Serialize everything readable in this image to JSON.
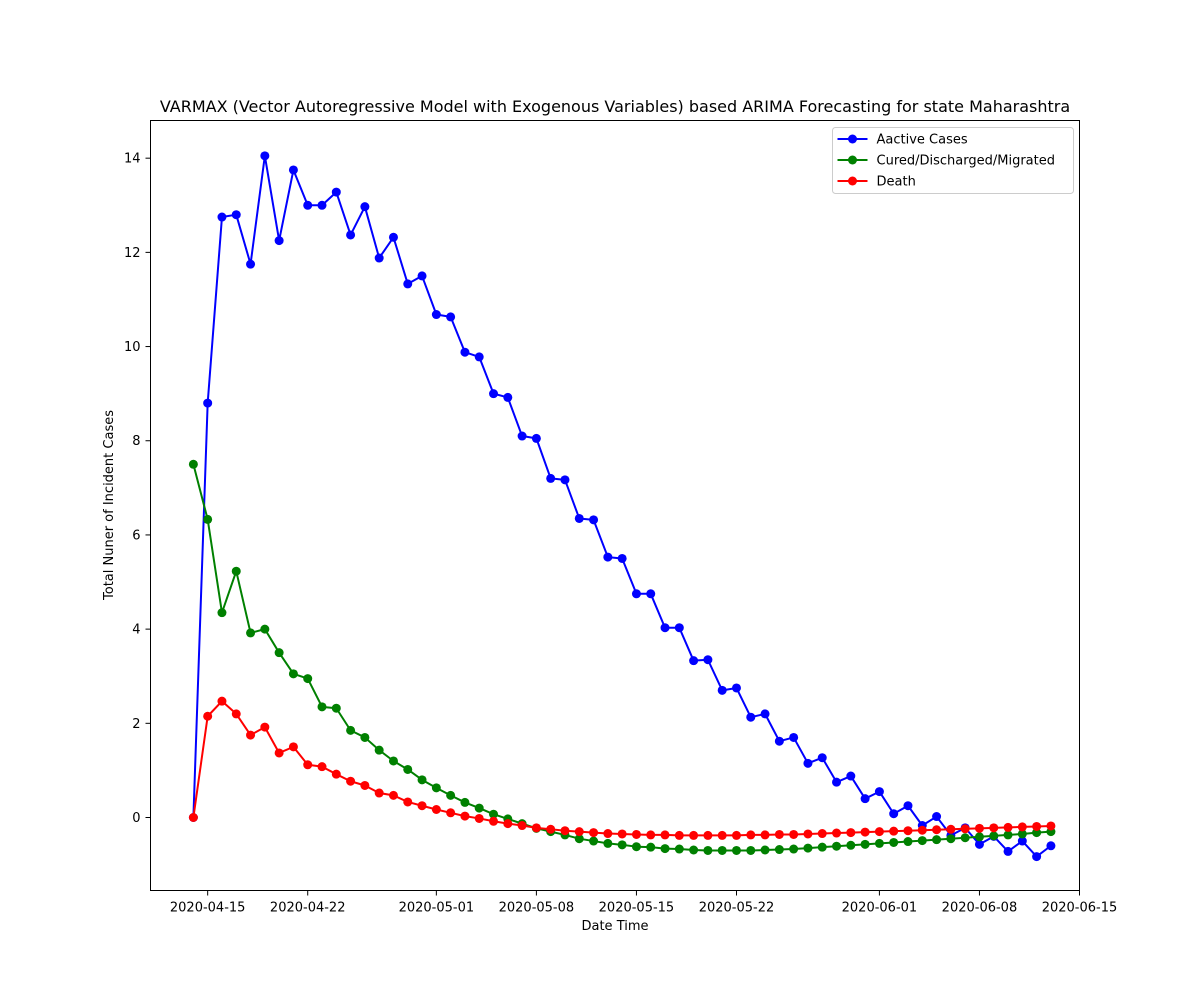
{
  "chart_data": {
    "type": "line",
    "title": "VARMAX (Vector Autoregressive Model with Exogenous Variables) based ARIMA Forecasting for state Maharashtra",
    "xlabel": "Date Time",
    "ylabel": "Total Nuner of Incident Cases",
    "x_start": "2020-04-14",
    "xlim": [
      "2020-04-11",
      "2020-06-15"
    ],
    "ylim": [
      -1.55,
      14.8
    ],
    "x_ticks": [
      "2020-04-15",
      "2020-04-22",
      "2020-05-01",
      "2020-05-08",
      "2020-05-15",
      "2020-05-22",
      "2020-06-01",
      "2020-06-08",
      "2020-06-15"
    ],
    "y_ticks": [
      0,
      2,
      4,
      6,
      8,
      10,
      12,
      14
    ],
    "legend_position": "top-right",
    "grid": false,
    "series": [
      {
        "name": "Aactive Cases",
        "color": "#0000ff",
        "values": [
          0,
          8.8,
          12.75,
          12.8,
          11.75,
          14.05,
          12.25,
          13.75,
          13.0,
          13.0,
          13.28,
          12.37,
          12.97,
          11.88,
          12.32,
          11.33,
          11.5,
          10.68,
          10.63,
          9.88,
          9.78,
          9.0,
          8.92,
          8.1,
          8.05,
          7.2,
          7.17,
          6.35,
          6.32,
          5.53,
          5.5,
          4.75,
          4.75,
          4.03,
          4.03,
          3.33,
          3.35,
          2.7,
          2.75,
          2.13,
          2.2,
          1.62,
          1.7,
          1.15,
          1.27,
          0.75,
          0.88,
          0.4,
          0.55,
          0.08,
          0.25,
          -0.17,
          0.02,
          -0.38,
          -0.22,
          -0.57,
          -0.4,
          -0.72,
          -0.5,
          -0.83,
          -0.6
        ]
      },
      {
        "name": "Cured/Discharged/Migrated",
        "color": "#008000",
        "values": [
          7.5,
          6.33,
          4.35,
          5.23,
          3.92,
          4.0,
          3.5,
          3.05,
          2.95,
          2.35,
          2.32,
          1.85,
          1.7,
          1.43,
          1.2,
          1.02,
          0.8,
          0.63,
          0.47,
          0.32,
          0.2,
          0.07,
          -0.03,
          -0.13,
          -0.23,
          -0.3,
          -0.37,
          -0.45,
          -0.5,
          -0.55,
          -0.58,
          -0.62,
          -0.63,
          -0.66,
          -0.67,
          -0.69,
          -0.7,
          -0.7,
          -0.7,
          -0.7,
          -0.69,
          -0.68,
          -0.67,
          -0.65,
          -0.63,
          -0.61,
          -0.59,
          -0.57,
          -0.55,
          -0.53,
          -0.51,
          -0.49,
          -0.47,
          -0.45,
          -0.43,
          -0.41,
          -0.39,
          -0.37,
          -0.35,
          -0.32,
          -0.3
        ]
      },
      {
        "name": "Death",
        "color": "#ff0000",
        "values": [
          0,
          2.15,
          2.47,
          2.2,
          1.75,
          1.92,
          1.37,
          1.5,
          1.12,
          1.08,
          0.92,
          0.77,
          0.68,
          0.52,
          0.47,
          0.33,
          0.25,
          0.17,
          0.1,
          0.03,
          -0.02,
          -0.08,
          -0.13,
          -0.17,
          -0.22,
          -0.25,
          -0.28,
          -0.3,
          -0.32,
          -0.34,
          -0.35,
          -0.36,
          -0.37,
          -0.37,
          -0.38,
          -0.38,
          -0.38,
          -0.38,
          -0.38,
          -0.37,
          -0.37,
          -0.36,
          -0.36,
          -0.35,
          -0.34,
          -0.33,
          -0.32,
          -0.31,
          -0.3,
          -0.29,
          -0.28,
          -0.27,
          -0.26,
          -0.25,
          -0.24,
          -0.23,
          -0.22,
          -0.21,
          -0.2,
          -0.19,
          -0.18
        ]
      }
    ]
  }
}
